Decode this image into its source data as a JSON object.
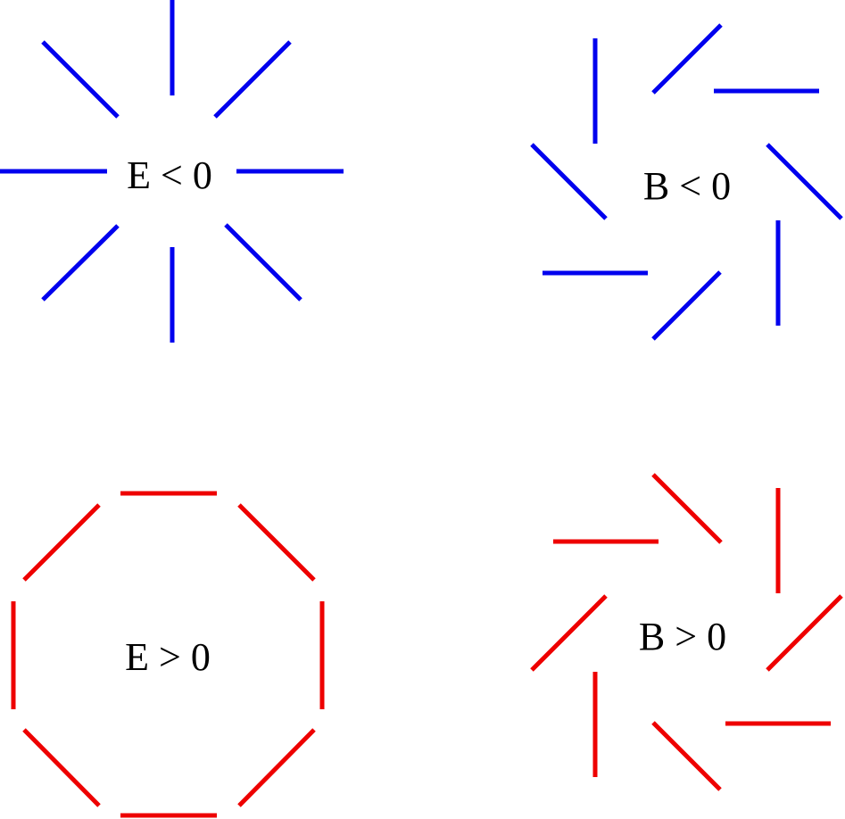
{
  "colors": {
    "negative": "#0000ee",
    "positive": "#ee0000",
    "text": "#000000",
    "background": "#ffffff"
  },
  "panels": {
    "e_negative": {
      "label": "E < 0",
      "color_role": "negative",
      "pattern": "radial"
    },
    "b_negative": {
      "label": "B < 0",
      "color_role": "negative",
      "pattern": "clockwise-pinwheel"
    },
    "e_positive": {
      "label": "E > 0",
      "color_role": "positive",
      "pattern": "tangential-ring"
    },
    "b_positive": {
      "label": "B > 0",
      "color_role": "positive",
      "pattern": "counter-clockwise-pinwheel"
    }
  }
}
